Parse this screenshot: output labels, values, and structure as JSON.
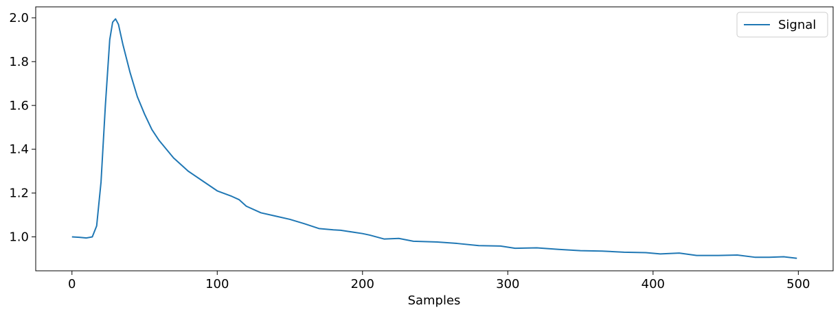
{
  "chart_data": {
    "type": "line",
    "xlabel": "Samples",
    "x": [
      0,
      5,
      10,
      14,
      17,
      20,
      23,
      26,
      28,
      30,
      32,
      35,
      40,
      45,
      50,
      55,
      60,
      70,
      80,
      90,
      100,
      110,
      115,
      120,
      130,
      140,
      150,
      160,
      170,
      180,
      185,
      190,
      200,
      205,
      215,
      225,
      235,
      250,
      265,
      280,
      295,
      305,
      320,
      335,
      350,
      365,
      380,
      395,
      405,
      418,
      430,
      445,
      458,
      470,
      480,
      490,
      499
    ],
    "series": [
      {
        "name": "Signal",
        "color": "#1f77b4",
        "values": [
          1.0,
          0.998,
          0.995,
          1.0,
          1.05,
          1.25,
          1.6,
          1.9,
          1.98,
          1.995,
          1.97,
          1.88,
          1.75,
          1.64,
          1.56,
          1.49,
          1.44,
          1.36,
          1.3,
          1.255,
          1.21,
          1.185,
          1.17,
          1.14,
          1.11,
          1.095,
          1.08,
          1.06,
          1.038,
          1.032,
          1.03,
          1.025,
          1.015,
          1.008,
          0.99,
          0.993,
          0.98,
          0.977,
          0.97,
          0.96,
          0.958,
          0.948,
          0.95,
          0.943,
          0.937,
          0.935,
          0.93,
          0.928,
          0.922,
          0.926,
          0.915,
          0.915,
          0.917,
          0.907,
          0.907,
          0.909,
          0.902
        ]
      }
    ],
    "xlim": [
      -24.95,
      523.95
    ],
    "ylim": [
      0.845,
      2.05
    ],
    "xticks": [
      0,
      100,
      200,
      300,
      400,
      500
    ],
    "yticks": [
      {
        "value": 1.0,
        "label": "1.0"
      },
      {
        "value": 1.2,
        "label": "1.2"
      },
      {
        "value": 1.4,
        "label": "1.4"
      },
      {
        "value": 1.6,
        "label": "1.6"
      },
      {
        "value": 1.8,
        "label": "1.8"
      },
      {
        "value": 2.0,
        "label": "2.0"
      }
    ],
    "legend": "upper right"
  }
}
